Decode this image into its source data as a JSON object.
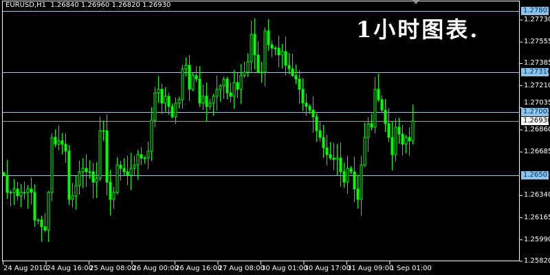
{
  "header": {
    "symbol": "EURUSD,H1",
    "open": "1.26840",
    "high": "1.26960",
    "low": "1.26820",
    "close": "1.26930"
  },
  "overlay_text": "1小时图表.",
  "colors": {
    "background": "#000000",
    "candle": "#00ff00",
    "level_line": "#9cc8e8",
    "bid_line": "#a0a0a0",
    "axis": "#ffffff"
  },
  "chart_data": {
    "type": "candlestick",
    "timeframe": "H1",
    "ylim": [
      1.2582,
      1.27801
    ],
    "y_ticks": [
      "1.27730",
      "1.27555",
      "1.27385",
      "1.27210",
      "1.27035",
      "1.26860",
      "1.26685",
      "1.26340",
      "1.26165",
      "1.25990",
      "1.25820"
    ],
    "x_ticks": [
      "24 Aug 2010",
      "24 Aug 16:00",
      "25 Aug 08:00",
      "26 Aug 00:00",
      "26 Aug 16:00",
      "27 Aug 08:00",
      "30 Aug 01:00",
      "30 Aug 17:00",
      "31 Aug 09:00",
      "1 Sep 01:00"
    ],
    "levels": [
      {
        "price": "1.27801",
        "kind": "horizontal-line"
      },
      {
        "price": "1.27316",
        "kind": "horizontal-line"
      },
      {
        "price": "1.27002",
        "kind": "horizontal-line"
      },
      {
        "price": "1.26501",
        "kind": "horizontal-line"
      },
      {
        "price": "1.26930",
        "kind": "bid"
      }
    ],
    "closes": [
      1.26501,
      1.26365,
      1.26365,
      1.26392,
      1.26338,
      1.26365,
      1.26365,
      1.26392,
      1.26365,
      1.26147,
      1.26147,
      1.26093,
      1.26066,
      1.26365,
      1.268,
      1.26746,
      1.26773,
      1.26746,
      1.26691,
      1.2631,
      1.26338,
      1.26419,
      1.26528,
      1.26555,
      1.26528,
      1.26528,
      1.26446,
      1.26474,
      1.26854,
      1.26854,
      1.26446,
      1.2631,
      1.26365,
      1.26582,
      1.26555,
      1.26528,
      1.26501,
      1.26555,
      1.26582,
      1.26664,
      1.26637,
      1.26637,
      1.26691,
      1.26936,
      1.27153,
      1.27181,
      1.27072,
      1.27126,
      1.27045,
      1.26963,
      1.27072,
      1.27099,
      1.27344,
      1.27371,
      1.27181,
      1.2729,
      1.27262,
      1.27072,
      1.27126,
      1.27045,
      1.27072,
      1.27126,
      1.27181,
      1.27208,
      1.27262,
      1.27153,
      1.27126,
      1.27235,
      1.27181,
      1.2729,
      1.27317,
      1.27398,
      1.27616,
      1.27453,
      1.27317,
      1.27317,
      1.27643,
      1.27534,
      1.27507,
      1.27507,
      1.27453,
      1.2748,
      1.27371,
      1.27344,
      1.2729,
      1.27262,
      1.27181,
      1.27072,
      1.27045,
      1.27017,
      1.26963,
      1.26854,
      1.268,
      1.26718,
      1.26664,
      1.26637,
      1.26626,
      1.26637,
      1.26528,
      1.26446,
      1.26555,
      1.26528,
      1.26392,
      1.2631,
      1.26582,
      1.268,
      1.26909,
      1.26881,
      1.27181,
      1.27099,
      1.27017,
      1.26909,
      1.268,
      1.26664,
      1.26881,
      1.26827,
      1.26746,
      1.268,
      1.26773,
      1.2693
    ]
  }
}
